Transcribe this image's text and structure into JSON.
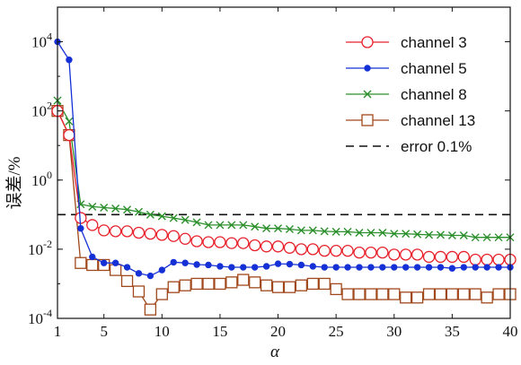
{
  "chart_data": {
    "type": "line",
    "xlabel": "α",
    "ylabel": "误差/%",
    "yscale": "log",
    "xlim": [
      1,
      40
    ],
    "ylim": [
      0.0001,
      100000
    ],
    "x_ticks": [
      1,
      5,
      10,
      15,
      20,
      25,
      30,
      35,
      40
    ],
    "y_ticks": [
      {
        "value": 0.0001,
        "base": "10",
        "exp": "-4"
      },
      {
        "value": 0.01,
        "base": "10",
        "exp": "-2"
      },
      {
        "value": 1,
        "base": "10",
        "exp": "0"
      },
      {
        "value": 100,
        "base": "10",
        "exp": "2"
      },
      {
        "value": 10000,
        "base": "10",
        "exp": "4"
      }
    ],
    "legend_position": "top-right",
    "x": [
      1,
      2,
      3,
      4,
      5,
      6,
      7,
      8,
      9,
      10,
      11,
      12,
      13,
      14,
      15,
      16,
      17,
      18,
      19,
      20,
      21,
      22,
      23,
      24,
      25,
      26,
      27,
      28,
      29,
      30,
      31,
      32,
      33,
      34,
      35,
      36,
      37,
      38,
      39,
      40
    ],
    "series": [
      {
        "name": "channel 3",
        "color": "#e8202a",
        "marker": "circle",
        "values": [
          100,
          20,
          0.08,
          0.05,
          0.035,
          0.033,
          0.033,
          0.03,
          0.028,
          0.026,
          0.024,
          0.02,
          0.017,
          0.016,
          0.016,
          0.015,
          0.015,
          0.013,
          0.012,
          0.012,
          0.011,
          0.01,
          0.01,
          0.009,
          0.009,
          0.009,
          0.008,
          0.008,
          0.008,
          0.007,
          0.007,
          0.007,
          0.006,
          0.006,
          0.006,
          0.006,
          0.005,
          0.005,
          0.005,
          0.005
        ]
      },
      {
        "name": "channel 5",
        "color": "#1531d6",
        "marker": "dot",
        "values": [
          10000,
          3000,
          0.04,
          0.006,
          0.004,
          0.004,
          0.003,
          0.002,
          0.0017,
          0.0025,
          0.0042,
          0.004,
          0.0036,
          0.0035,
          0.0032,
          0.003,
          0.003,
          0.003,
          0.0032,
          0.0038,
          0.0037,
          0.0035,
          0.0032,
          0.003,
          0.003,
          0.003,
          0.003,
          0.003,
          0.003,
          0.003,
          0.003,
          0.003,
          0.003,
          0.003,
          0.0028,
          0.003,
          0.003,
          0.003,
          0.003,
          0.003
        ]
      },
      {
        "name": "channel 8",
        "color": "#2b8f2b",
        "marker": "x",
        "values": [
          200,
          50,
          0.2,
          0.17,
          0.16,
          0.15,
          0.14,
          0.12,
          0.1,
          0.09,
          0.08,
          0.07,
          0.06,
          0.05,
          0.05,
          0.05,
          0.05,
          0.045,
          0.04,
          0.04,
          0.038,
          0.035,
          0.035,
          0.033,
          0.032,
          0.032,
          0.03,
          0.03,
          0.03,
          0.028,
          0.028,
          0.027,
          0.026,
          0.026,
          0.025,
          0.025,
          0.022,
          0.022,
          0.022,
          0.022
        ]
      },
      {
        "name": "channel 13",
        "color": "#a0481b",
        "marker": "square",
        "values": [
          100,
          20,
          0.004,
          0.0035,
          0.0035,
          0.0025,
          0.0012,
          0.0006,
          0.00018,
          0.0005,
          0.0008,
          0.0009,
          0.001,
          0.001,
          0.001,
          0.0011,
          0.0013,
          0.0011,
          0.0009,
          0.0008,
          0.0008,
          0.0009,
          0.001,
          0.001,
          0.0007,
          0.0005,
          0.0005,
          0.0005,
          0.0005,
          0.0005,
          0.0004,
          0.0004,
          0.0005,
          0.0005,
          0.0005,
          0.0005,
          0.0005,
          0.0004,
          0.0005,
          0.0005
        ]
      },
      {
        "name": "error 0.1%",
        "color": "#111111",
        "marker": "none",
        "dashed": true,
        "values": [
          0.1,
          0.1,
          0.1,
          0.1,
          0.1,
          0.1,
          0.1,
          0.1,
          0.1,
          0.1,
          0.1,
          0.1,
          0.1,
          0.1,
          0.1,
          0.1,
          0.1,
          0.1,
          0.1,
          0.1,
          0.1,
          0.1,
          0.1,
          0.1,
          0.1,
          0.1,
          0.1,
          0.1,
          0.1,
          0.1,
          0.1,
          0.1,
          0.1,
          0.1,
          0.1,
          0.1,
          0.1,
          0.1,
          0.1,
          0.1
        ]
      }
    ]
  }
}
